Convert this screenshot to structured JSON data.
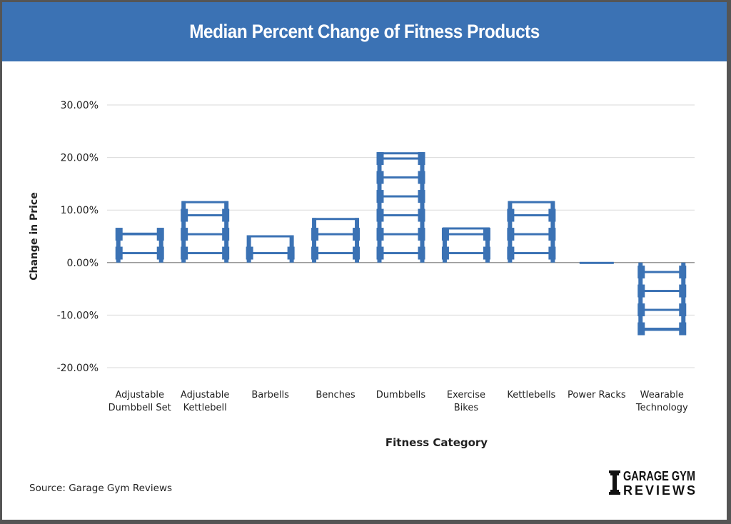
{
  "header": {
    "title": "Median Percent Change of Fitness Products"
  },
  "source": {
    "text": "Source: Garage Gym Reviews"
  },
  "logo": {
    "line1": "GARAGE GYM",
    "line2": "REVIEWS",
    "icon": "dumbbell-icon"
  },
  "colors": {
    "header": "#3b72b4",
    "bar": "#3b72b4",
    "grid": "#d9d9d9",
    "axis": "#999999",
    "text": "#222222"
  },
  "chart_data": {
    "type": "bar",
    "title": "Median Percent Change of Fitness Products",
    "xlabel": "Fitness Category",
    "ylabel": "Change in Price",
    "ylim": [
      -20,
      30
    ],
    "yticks": [
      30,
      20,
      10,
      0,
      -10,
      -20
    ],
    "ytick_labels": [
      "30.00%",
      "20.00%",
      "10.00%",
      "0.00%",
      "-10.00%",
      "-20.00%"
    ],
    "grid": true,
    "categories": [
      [
        "Adjustable",
        "Dumbbell Set"
      ],
      [
        "Adjustable",
        "Kettlebell"
      ],
      [
        "Barbells"
      ],
      [
        "Benches"
      ],
      [
        "Dumbbells"
      ],
      [
        "Exercise",
        "Bikes"
      ],
      [
        "Kettlebells"
      ],
      [
        "Power Racks"
      ],
      [
        "Wearable",
        "Technology"
      ]
    ],
    "values": [
      5.7,
      11.7,
      5.2,
      8.5,
      21.0,
      6.7,
      11.7,
      -0.3,
      -13.0
    ]
  }
}
